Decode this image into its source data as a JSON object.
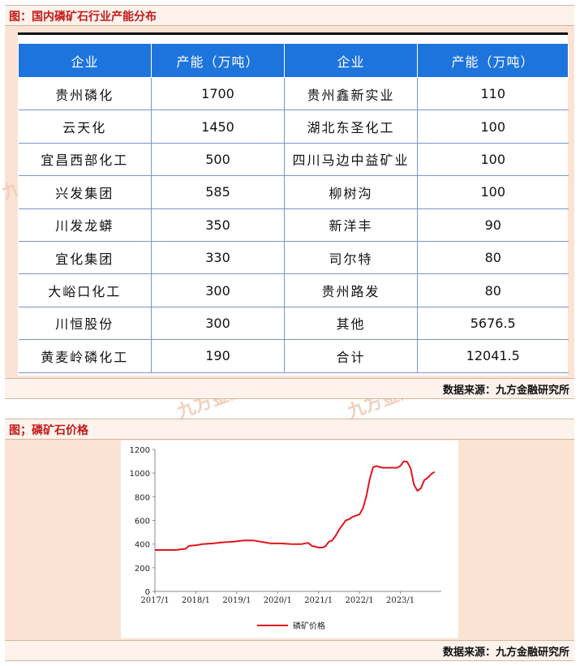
{
  "section1": {
    "title": "图：国内磷矿石行业产能分布",
    "source": "数据来源：九方金融研究所"
  },
  "table": {
    "headers": [
      "企业",
      "产能（万吨）",
      "企业",
      "产能（万吨）"
    ],
    "rows": [
      [
        "贵州磷化",
        "1700",
        "贵州鑫新实业",
        "110"
      ],
      [
        "云天化",
        "1450",
        "湖北东圣化工",
        "100"
      ],
      [
        "宜昌西部化工",
        "500",
        "四川马边中益矿业",
        "100"
      ],
      [
        "兴发集团",
        "585",
        "柳树沟",
        "100"
      ],
      [
        "川发龙蟒",
        "350",
        "新洋丰",
        "90"
      ],
      [
        "宜化集团",
        "330",
        "司尔特",
        "80"
      ],
      [
        "大峪口化工",
        "300",
        "贵州路发",
        "80"
      ],
      [
        "川恒股份",
        "300",
        "其他",
        "5676.5"
      ],
      [
        "黄麦岭磷化工",
        "190",
        "合计",
        "12041.5"
      ]
    ]
  },
  "section2": {
    "title": "图；磷矿石价格",
    "source": "数据来源：九方金融研究所"
  },
  "watermark": "九方金融",
  "colors": {
    "accent_red": "#c41a1a",
    "header_blue": "#1d74dc",
    "line_red": "#e0161c",
    "panel_bg": "#fbe3d4"
  },
  "chart_data": {
    "type": "line",
    "title": "",
    "xlabel": "",
    "ylabel": "",
    "ylim": [
      0,
      1200
    ],
    "yticks": [
      0,
      200,
      400,
      600,
      800,
      1000,
      1200
    ],
    "xticks": [
      "2017/1",
      "2018/1",
      "2019/1",
      "2020/1",
      "2021/1",
      "2022/1",
      "2023/1"
    ],
    "xlim": [
      "2017-01",
      "2023-12"
    ],
    "legend": "bottom",
    "grid": false,
    "series": [
      {
        "name": "磷矿价格",
        "color": "#e0161c",
        "x": [
          "2017-01",
          "2017-07",
          "2017-10",
          "2017-11",
          "2018-01",
          "2018-03",
          "2018-06",
          "2018-09",
          "2018-12",
          "2019-03",
          "2019-06",
          "2019-09",
          "2019-11",
          "2020-02",
          "2020-05",
          "2020-08",
          "2020-10",
          "2020-11",
          "2021-01",
          "2021-02",
          "2021-03",
          "2021-04",
          "2021-05",
          "2021-06",
          "2021-07",
          "2021-08",
          "2021-09",
          "2021-10",
          "2021-11",
          "2021-12",
          "2022-01",
          "2022-02",
          "2022-03",
          "2022-04",
          "2022-05",
          "2022-06",
          "2022-07",
          "2022-08",
          "2022-09",
          "2022-10",
          "2022-12",
          "2023-01",
          "2023-02",
          "2023-03",
          "2023-04",
          "2023-05",
          "2023-06",
          "2023-07",
          "2023-08",
          "2023-09",
          "2023-10",
          "2023-11"
        ],
        "values": [
          350,
          350,
          360,
          385,
          390,
          400,
          405,
          415,
          420,
          430,
          430,
          415,
          405,
          405,
          400,
          400,
          410,
          385,
          370,
          370,
          380,
          420,
          430,
          470,
          520,
          560,
          600,
          610,
          630,
          640,
          650,
          700,
          800,
          950,
          1050,
          1060,
          1050,
          1045,
          1045,
          1045,
          1045,
          1060,
          1100,
          1095,
          1040,
          900,
          850,
          870,
          940,
          960,
          990,
          1010
        ]
      }
    ]
  }
}
